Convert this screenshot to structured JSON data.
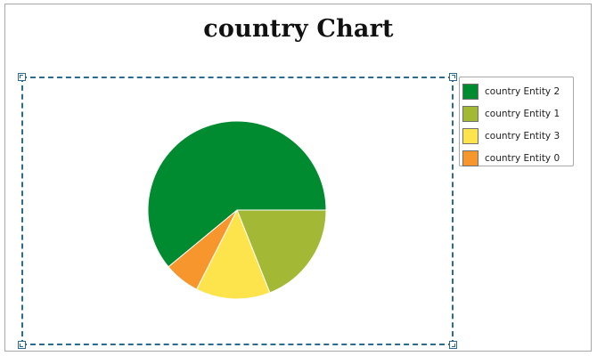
{
  "chart_data": {
    "type": "pie",
    "title": "country Chart",
    "start_angle_deg": 0,
    "legend_position": "top-right",
    "series": [
      {
        "name": "",
        "slices": [
          {
            "label": "country Entity 2",
            "value": 61.0,
            "color": "#008b31"
          },
          {
            "label": "country Entity 1",
            "value": 19.0,
            "color": "#a3b935"
          },
          {
            "label": "country Entity 3",
            "value": 13.5,
            "color": "#fde34c"
          },
          {
            "label": "country Entity 0",
            "value": 6.5,
            "color": "#f7962d"
          }
        ]
      }
    ],
    "slice_order_clockwise_from_right": [
      "country Entity 1",
      "country Entity 3",
      "country Entity 0",
      "country Entity 2"
    ],
    "selection": {
      "plot_area_selected": true,
      "selection_color": "#2b6a91"
    }
  }
}
